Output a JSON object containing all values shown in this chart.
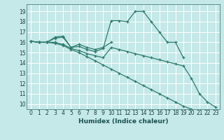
{
  "title": "",
  "xlabel": "Humidex (Indice chaleur)",
  "bg_color": "#c5e8e8",
  "grid_color": "#ffffff",
  "line_color": "#2e7b6e",
  "xlim": [
    -0.5,
    23.5
  ],
  "ylim": [
    9.5,
    19.7
  ],
  "xticks": [
    0,
    1,
    2,
    3,
    4,
    5,
    6,
    7,
    8,
    9,
    10,
    11,
    12,
    13,
    14,
    15,
    16,
    17,
    18,
    19,
    20,
    21,
    22,
    23
  ],
  "yticks": [
    10,
    11,
    12,
    13,
    14,
    15,
    16,
    17,
    18,
    19
  ],
  "lines": [
    {
      "x": [
        0,
        1,
        2,
        3,
        4,
        5,
        6,
        7,
        8,
        9,
        10
      ],
      "y": [
        16.1,
        16.0,
        16.0,
        16.5,
        16.6,
        15.5,
        15.8,
        15.5,
        15.3,
        15.5,
        16.0
      ]
    },
    {
      "x": [
        0,
        1,
        2,
        3,
        4,
        5,
        6,
        7,
        8,
        9,
        10,
        11,
        12,
        13,
        14,
        15,
        16,
        17,
        18,
        19
      ],
      "y": [
        16.1,
        16.0,
        16.0,
        16.4,
        16.5,
        15.5,
        15.6,
        15.3,
        15.1,
        15.4,
        18.1,
        18.1,
        18.0,
        19.0,
        19.0,
        18.0,
        17.0,
        16.0,
        16.0,
        14.5
      ]
    },
    {
      "x": [
        0,
        1,
        2,
        3,
        4,
        5,
        6,
        7,
        8,
        9,
        10,
        11,
        12,
        13,
        14,
        15,
        16,
        17,
        18,
        19,
        20,
        21,
        22,
        23
      ],
      "y": [
        16.1,
        16.0,
        16.0,
        16.0,
        15.8,
        15.4,
        15.2,
        14.9,
        14.7,
        14.5,
        15.5,
        15.3,
        15.1,
        14.9,
        14.7,
        14.5,
        14.3,
        14.1,
        13.9,
        13.7,
        12.5,
        11.0,
        10.2,
        9.7
      ]
    },
    {
      "x": [
        0,
        1,
        2,
        3,
        4,
        5,
        6,
        7,
        8,
        9,
        10,
        11,
        12,
        13,
        14,
        15,
        16,
        17,
        18,
        19,
        20,
        21,
        22,
        23
      ],
      "y": [
        16.1,
        16.0,
        16.0,
        15.9,
        15.7,
        15.3,
        15.0,
        14.6,
        14.2,
        13.8,
        13.4,
        13.0,
        12.6,
        12.2,
        11.8,
        11.4,
        11.0,
        10.6,
        10.2,
        9.8,
        9.5,
        null,
        null,
        null
      ]
    }
  ]
}
